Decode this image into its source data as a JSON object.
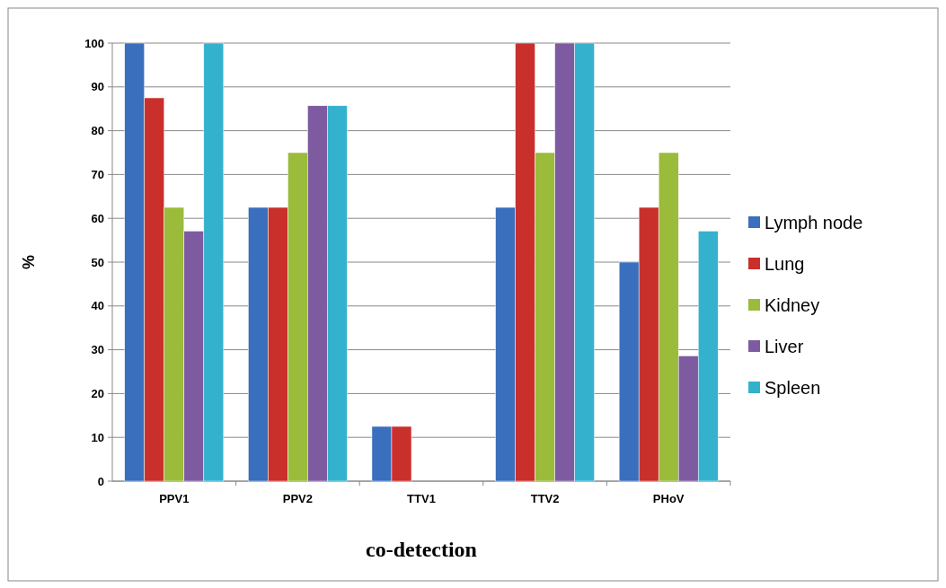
{
  "chart_data": {
    "type": "bar",
    "xlabel": "co-detection",
    "ylabel": "%",
    "categories": [
      "PPV1",
      "PPV2",
      "TTV1",
      "TTV2",
      "PHoV"
    ],
    "series": [
      {
        "name": "Lymph node",
        "color": "#3a6fbd",
        "values": [
          100,
          62.5,
          12.5,
          62.5,
          50
        ]
      },
      {
        "name": "Lung",
        "color": "#c9302c",
        "values": [
          87.5,
          62.5,
          12.5,
          100,
          62.5
        ]
      },
      {
        "name": "Kidney",
        "color": "#9bbb3b",
        "values": [
          62.5,
          75,
          0,
          75,
          75
        ]
      },
      {
        "name": "Liver",
        "color": "#7e5ba0",
        "values": [
          57.1,
          85.7,
          0,
          100,
          28.6
        ]
      },
      {
        "name": "Spleen",
        "color": "#34b1cd",
        "values": [
          100,
          85.7,
          0,
          100,
          57.1
        ]
      }
    ],
    "ylim": [
      0,
      100
    ],
    "yticks": [
      0,
      10,
      20,
      30,
      40,
      50,
      60,
      70,
      80,
      90,
      100
    ],
    "grid": "y",
    "legend": "right"
  }
}
